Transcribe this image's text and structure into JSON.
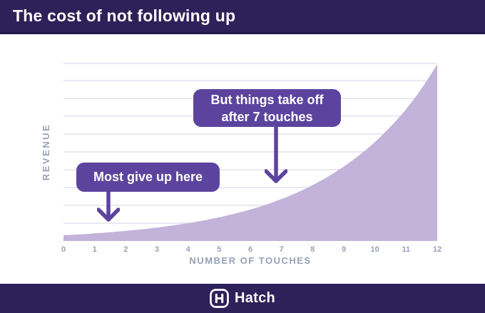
{
  "header": {
    "title": "The cost of not following up"
  },
  "chart_data": {
    "type": "area",
    "title": "The cost of not following up",
    "xlabel": "NUMBER OF TOUCHES",
    "ylabel": "REVENUE",
    "x": [
      0,
      1,
      2,
      3,
      4,
      5,
      6,
      7,
      8,
      9,
      10,
      11,
      12
    ],
    "x_ticks": [
      "0",
      "1",
      "2",
      "3",
      "4",
      "5",
      "6",
      "7",
      "8",
      "9",
      "10",
      "11",
      "12"
    ],
    "values": [
      0.032,
      0.043,
      0.057,
      0.076,
      0.101,
      0.134,
      0.178,
      0.237,
      0.316,
      0.421,
      0.56,
      0.745,
      1.0
    ],
    "xlim": [
      0,
      12
    ],
    "ylim": [
      0,
      1
    ],
    "y_axis_numeric_labels": false,
    "grid": "horizontal",
    "gridline_count": 10,
    "legend": "none",
    "curve_shape": "exponential growth, revenue vs number of touches",
    "annotations": [
      {
        "lines": [
          "But things take off",
          "after 7 touches"
        ],
        "arrow_points_to_x": 7
      },
      {
        "lines": [
          "Most give up here"
        ],
        "arrow_points_to_x": 1.5
      }
    ]
  },
  "footer": {
    "brand": "Hatch"
  },
  "icons": {
    "hatch_logo": "hatch-logo-icon (rounded square with H monogram)",
    "arrows": "arrow-down-icon (purple line with chevron head)"
  },
  "colors": {
    "brand_dark": "#2d2159",
    "header_border": "#231a4d",
    "callout_purple": "#5c449e",
    "area_fill": "#c3b2d9",
    "gridline": "#e4e1ee",
    "axis_text": "#99a1b8",
    "text_white": "#ffffff",
    "background": "#ffffff"
  }
}
